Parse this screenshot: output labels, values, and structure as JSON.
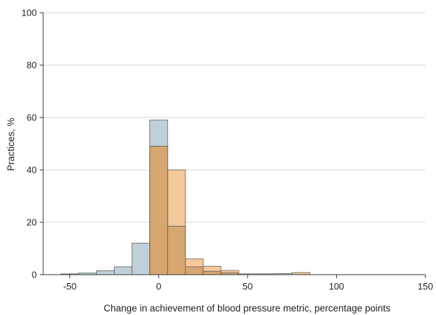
{
  "chart_data": {
    "type": "bar",
    "xlabel": "Change in achievement of blood pressure metric, percentage points",
    "ylabel": "Practices, %",
    "xlim": [
      -65,
      150
    ],
    "ylim": [
      0,
      100
    ],
    "x_ticks": [
      -50,
      0,
      50,
      100,
      150
    ],
    "y_ticks": [
      0,
      20,
      40,
      60,
      80,
      100
    ],
    "grid": "horizontal",
    "bin_width": 10,
    "series": [
      {
        "color": "#bfd0da",
        "bins": [
          {
            "x0": -55,
            "x1": -45,
            "value": 0.3
          },
          {
            "x0": -45,
            "x1": -35,
            "value": 0.6
          },
          {
            "x0": -35,
            "x1": -25,
            "value": 1.5
          },
          {
            "x0": -25,
            "x1": -15,
            "value": 3.0
          },
          {
            "x0": -15,
            "x1": -5,
            "value": 12.0
          },
          {
            "x0": -5,
            "x1": 5,
            "value": 59.0
          },
          {
            "x0": 5,
            "x1": 15,
            "value": 18.5
          },
          {
            "x0": 15,
            "x1": 25,
            "value": 3.0
          },
          {
            "x0": 25,
            "x1": 35,
            "value": 1.3
          },
          {
            "x0": 35,
            "x1": 45,
            "value": 0.7
          },
          {
            "x0": 45,
            "x1": 55,
            "value": 0.3
          },
          {
            "x0": 55,
            "x1": 65,
            "value": 0.3
          },
          {
            "x0": 65,
            "x1": 75,
            "value": 0.4
          }
        ]
      },
      {
        "color": "#f4c08b",
        "bins": [
          {
            "x0": -5,
            "x1": 5,
            "value": 49.0
          },
          {
            "x0": 5,
            "x1": 15,
            "value": 40.0
          },
          {
            "x0": 15,
            "x1": 25,
            "value": 6.0
          },
          {
            "x0": 25,
            "x1": 35,
            "value": 3.2
          },
          {
            "x0": 35,
            "x1": 45,
            "value": 1.6
          },
          {
            "x0": 75,
            "x1": 85,
            "value": 0.8
          }
        ]
      }
    ]
  }
}
